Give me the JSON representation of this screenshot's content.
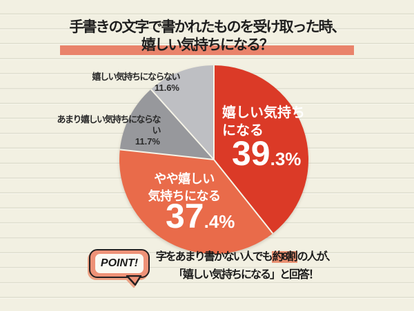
{
  "title": {
    "line1": "手書きの文字で書かれたものを受け取った時、",
    "line2": "嬉しい気持ちになる？"
  },
  "chart_data": {
    "type": "pie",
    "title": "手書きの文字で書かれたものを受け取った時、嬉しい気持ちになる？",
    "unit": "%",
    "start_angle_deg": -90,
    "direction": "clockwise",
    "slices": [
      {
        "label": "嬉しい気持ちになる",
        "label_lines": [
          "嬉しい気持ち",
          "になる"
        ],
        "pct": 39.3,
        "pct_display": "39.3%",
        "color": "#db3a27",
        "text_color": "#ffffff"
      },
      {
        "label": "やや嬉しい気持ちになる",
        "label_lines": [
          "やや嬉しい",
          "気持ちになる"
        ],
        "pct": 37.4,
        "pct_display": "37.4%",
        "color": "#e96b4a",
        "text_color": "#ffffff"
      },
      {
        "label": "あまり嬉しい気持ちにならない",
        "pct": 11.7,
        "pct_display": "11.7%",
        "color": "#97989c",
        "text_color": "#2a2a2a"
      },
      {
        "label": "嬉しい気持ちにならない",
        "pct": 11.6,
        "pct_display": "11.6%",
        "color": "#bebfc3",
        "text_color": "#2a2a2a"
      }
    ]
  },
  "point": {
    "badge": "POINT!",
    "line1_pre": "字をあまり書かない人でも",
    "line1_highlight": "約8割",
    "line1_post": "の人が、",
    "line2": "「嬉しい気持ちになる」と回答！"
  },
  "colors": {
    "background": "#f2f0e2",
    "rule_line": "#dfdecf",
    "accent_salmon": "#e9836b",
    "highlight_salmon": "#e98f70",
    "badge_salmon": "#ee9278",
    "slice_red": "#db3a27",
    "slice_orange": "#e96b4a",
    "slice_gray": "#97989c",
    "slice_light_gray": "#bebfc3",
    "text_black": "#1f1f1f",
    "text_white": "#ffffff"
  }
}
